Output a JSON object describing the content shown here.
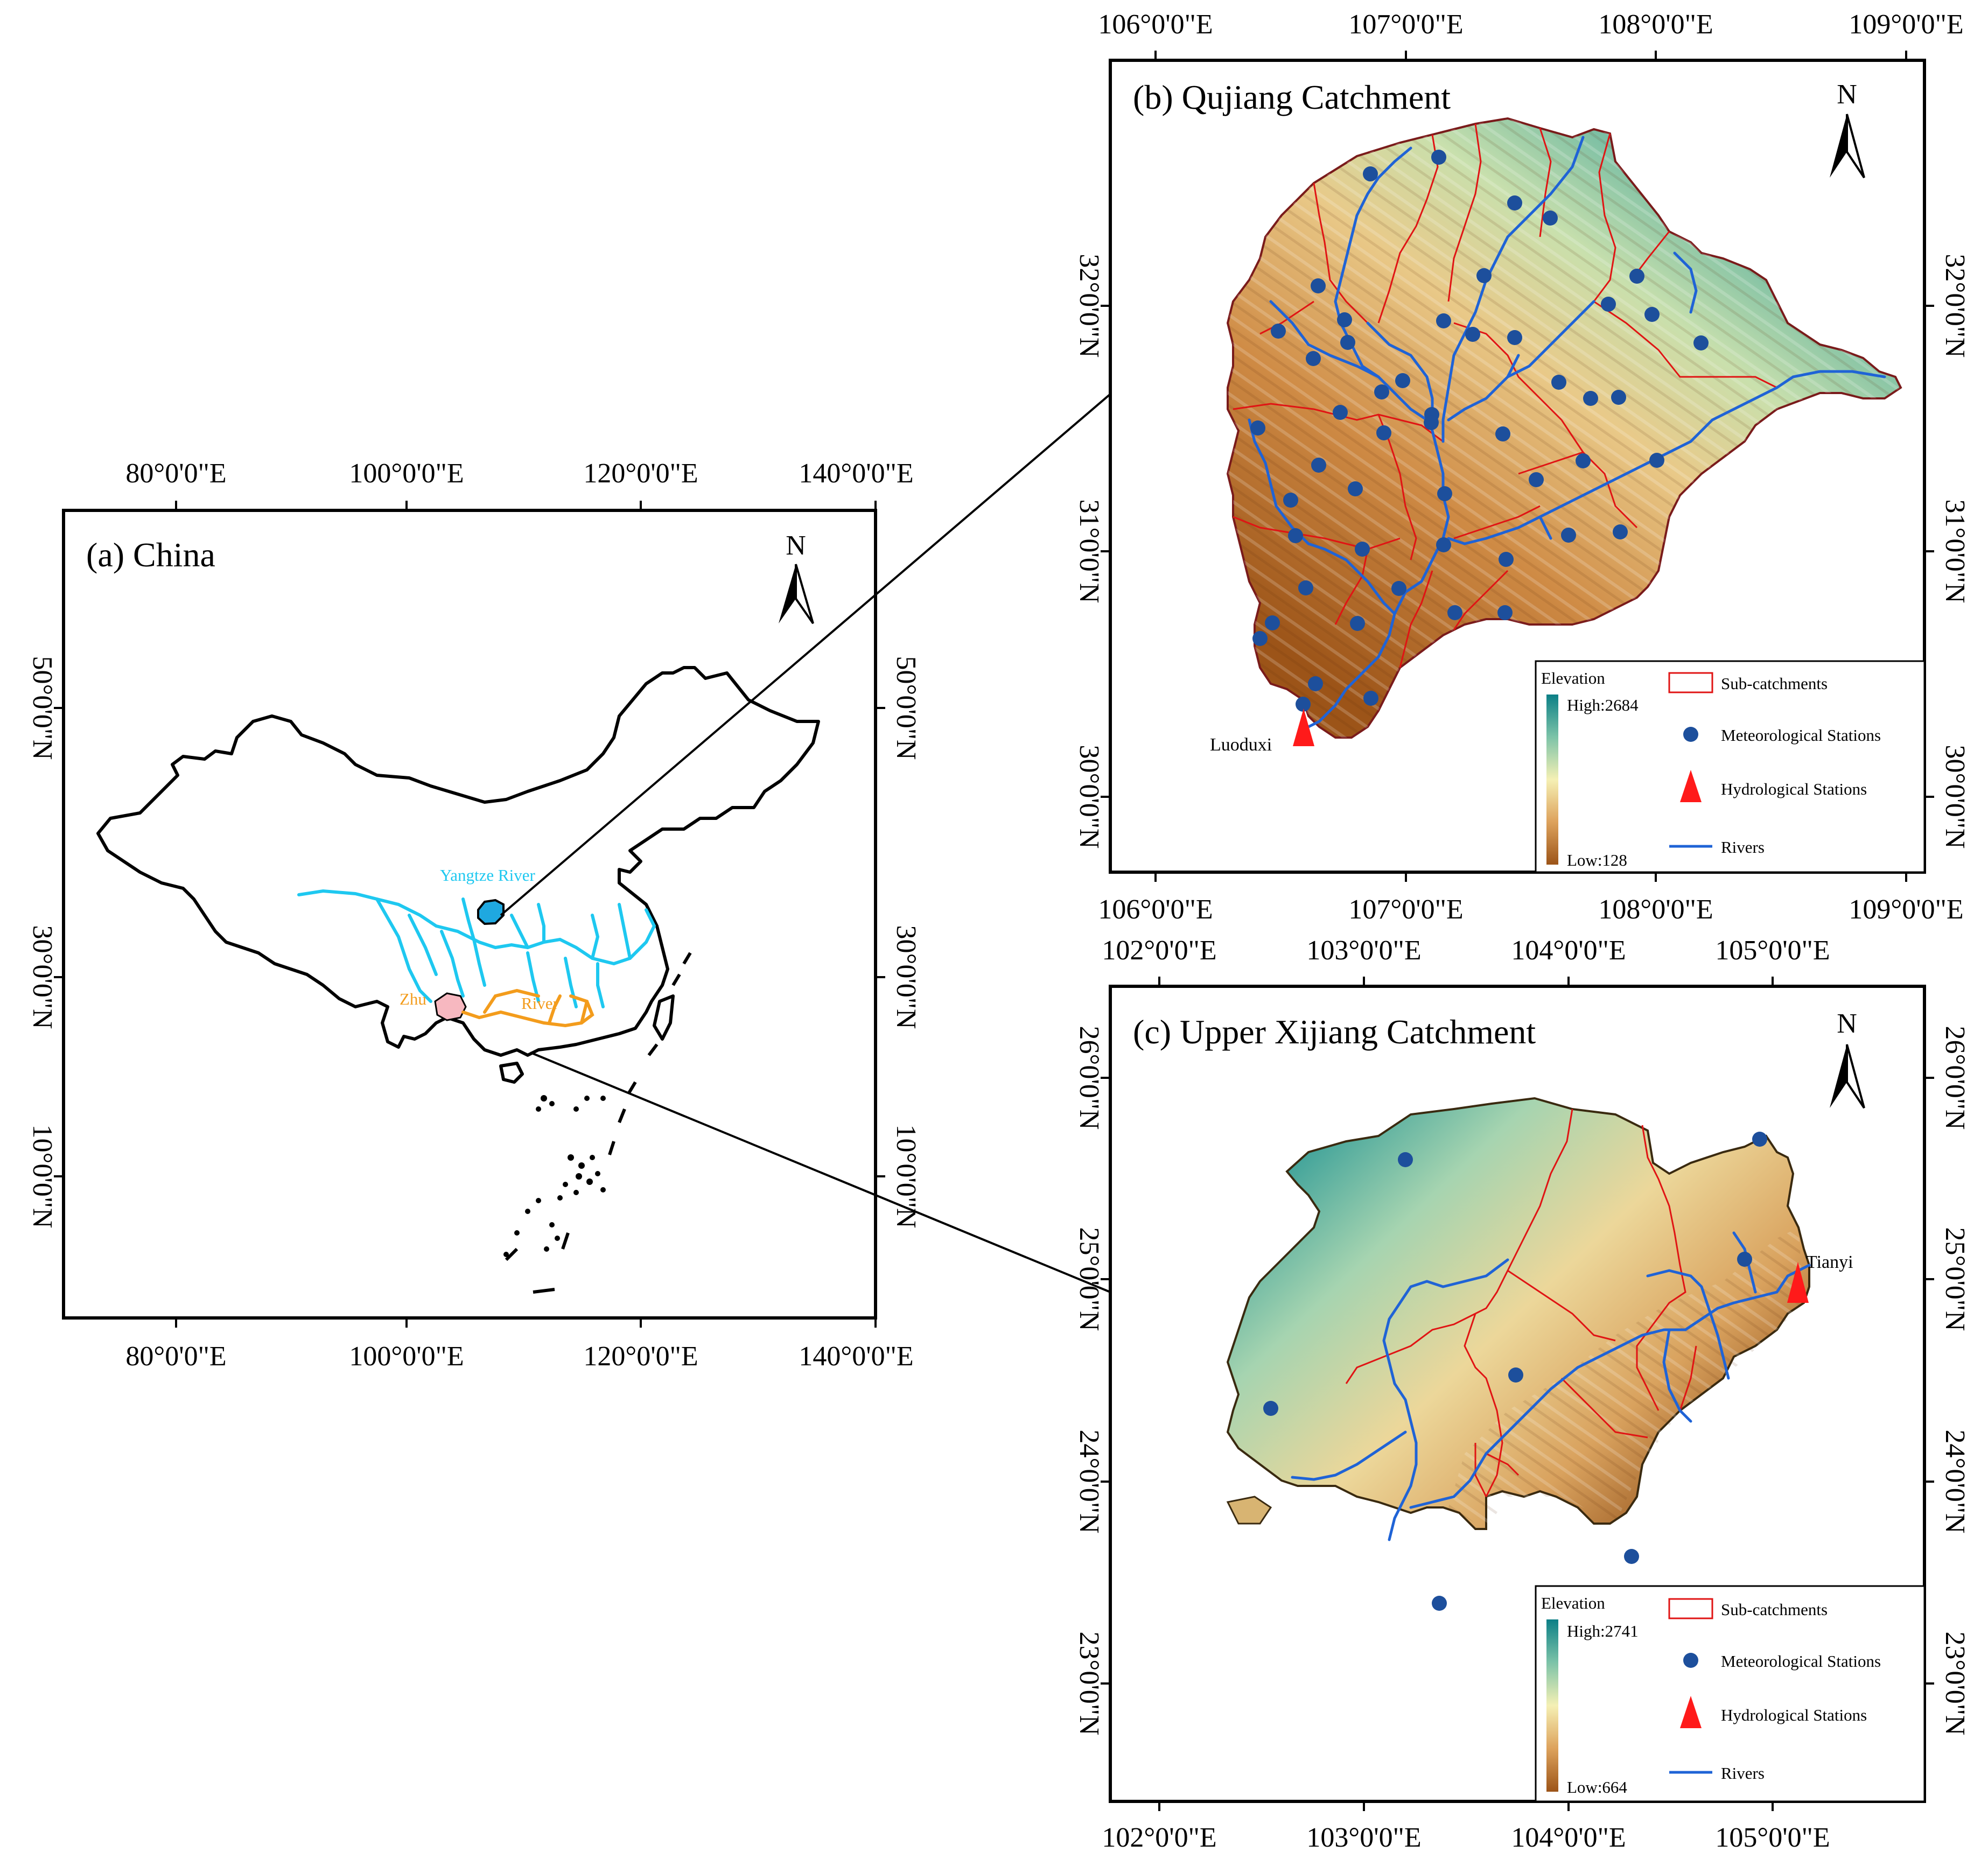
{
  "panels": {
    "china": {
      "title": "(a)  China",
      "north_label": "N",
      "x_ticks_top": [
        "80°0'0\"E",
        "100°0'0\"E",
        "120°0'0\"E",
        "140°0'0\"E"
      ],
      "x_ticks_bottom": [
        "80°0'0\"E",
        "100°0'0\"E",
        "120°0'0\"E",
        "140°0'0\"E"
      ],
      "y_ticks_left": [
        "50°0'0\"N",
        "30°0'0\"N",
        "10°0'0\"N"
      ],
      "y_ticks_right": [
        "50°0'0\"N",
        "30°0'0\"N",
        "10°0'0\"N"
      ],
      "labels": {
        "yangtze": "Yangtze River",
        "zhu": "Zhu",
        "river": "River"
      },
      "colors": {
        "yangtze": "#1ec8f0",
        "zhu": "#f39c1c",
        "zhu_fill": "#f7b8c0",
        "qujiang_fill": "#1fa8e0"
      }
    },
    "qujiang": {
      "title": "(b)  Qujiang Catchment",
      "north_label": "N",
      "x_ticks_top": [
        "106°0'0\"E",
        "107°0'0\"E",
        "108°0'0\"E",
        "109°0'0\"E"
      ],
      "x_ticks_bottom": [
        "106°0'0\"E",
        "107°0'0\"E",
        "108°0'0\"E",
        "109°0'0\"E"
      ],
      "y_ticks_left": [
        "32°0'0\"N",
        "31°0'0\"N",
        "30°0'0\"N"
      ],
      "y_ticks_right": [
        "32°0'0\"N",
        "31°0'0\"N",
        "30°0'0\"N"
      ],
      "station_label": "Luoduxi",
      "legend": {
        "elevation_title": "Elevation",
        "high": "High:2684",
        "low": "Low:128",
        "subcatchments": "Sub-catchments",
        "met_stations": "Meteorological Stations",
        "hydro_stations": "Hydrological Stations",
        "rivers": "Rivers"
      }
    },
    "xijiang": {
      "title": "(c)  Upper Xijiang Catchment",
      "north_label": "N",
      "x_ticks_top": [
        "102°0'0\"E",
        "103°0'0\"E",
        "104°0'0\"E",
        "105°0'0\"E"
      ],
      "x_ticks_bottom": [
        "102°0'0\"E",
        "103°0'0\"E",
        "104°0'0\"E",
        "105°0'0\"E"
      ],
      "y_ticks_left": [
        "26°0'0\"N",
        "25°0'0\"N",
        "24°0'0\"N",
        "23°0'0\"N"
      ],
      "y_ticks_right": [
        "26°0'0\"N",
        "25°0'0\"N",
        "24°0'0\"N",
        "23°0'0\"N"
      ],
      "station_label": "Tianyi",
      "legend": {
        "elevation_title": "Elevation",
        "high": "High:2741",
        "low": "Low:664",
        "subcatchments": "Sub-catchments",
        "met_stations": "Meteorological Stations",
        "hydro_stations": "Hydrological Stations",
        "rivers": "Rivers"
      }
    }
  },
  "colors": {
    "dem_high": "#0b7f86",
    "dem_mid_high": "#7cc3a8",
    "dem_mid": "#f5f0b4",
    "dem_mid_low": "#dda25c",
    "dem_low": "#9c5418",
    "subcatchment_line": "#e01414",
    "river_line": "#1f63d6",
    "met_station": "#1d4f9c",
    "hydro_station": "#ff1a1a"
  }
}
